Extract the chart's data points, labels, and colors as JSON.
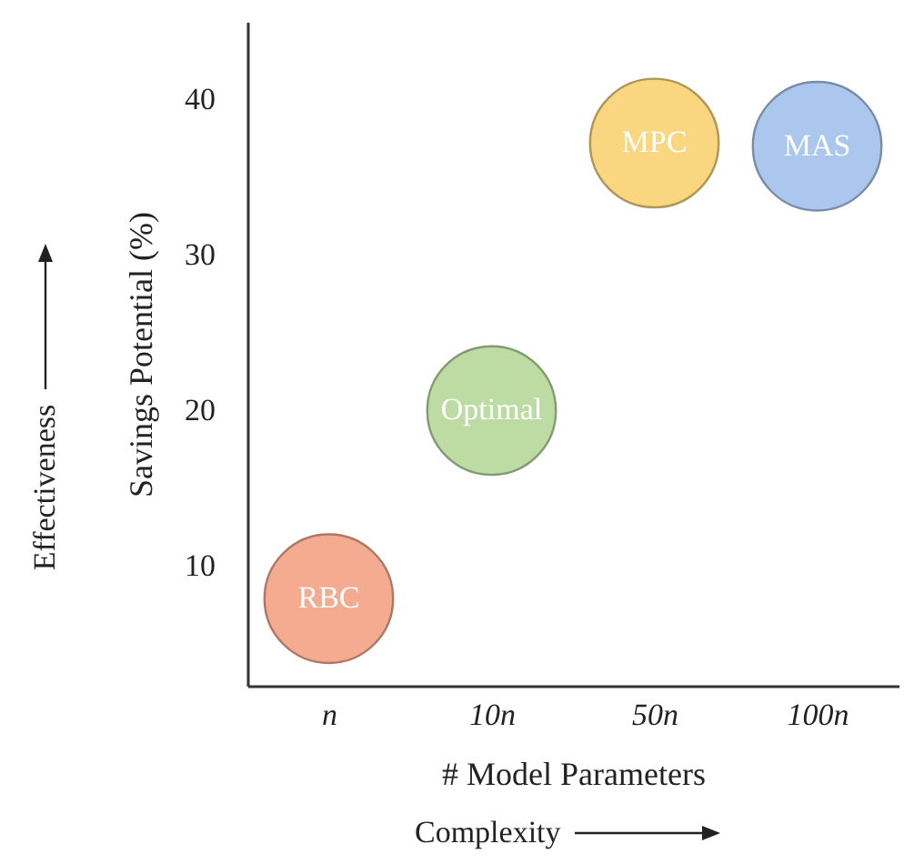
{
  "chart_data": {
    "type": "scatter",
    "xlabel": "# Model Parameters",
    "ylabel": "Savings Potential (%)",
    "annotations": [
      "Effectiveness",
      "Complexity"
    ],
    "categories": [
      "n",
      "10n",
      "50n",
      "100n"
    ],
    "ylim": [
      2.3,
      45
    ],
    "yticks": [
      10,
      20,
      30,
      40
    ],
    "series": [
      {
        "name": "RBC",
        "color": "#f5ab90",
        "x": [
          "n"
        ],
        "values": [
          7.9
        ]
      },
      {
        "name": "Optimal",
        "color": "#bcdca4",
        "x": [
          "10n"
        ],
        "values": [
          20
        ]
      },
      {
        "name": "MPC",
        "color": "#f9d67f",
        "x": [
          "50n"
        ],
        "values": [
          37.2
        ]
      },
      {
        "name": "MAS",
        "color": "#abc7ee",
        "x": [
          "100n"
        ],
        "values": [
          37
        ]
      }
    ]
  }
}
